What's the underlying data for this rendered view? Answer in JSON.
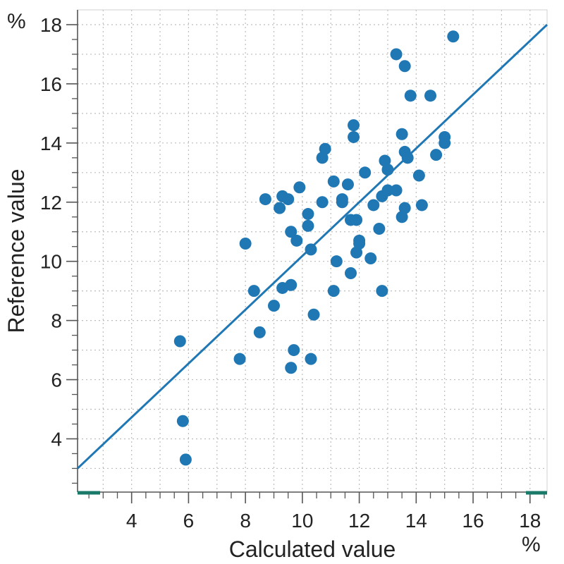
{
  "chart_data": {
    "type": "scatter",
    "xlabel": "Calculated value",
    "ylabel": "Reference value",
    "x_unit": "%",
    "y_unit": "%",
    "xlim": [
      2.1,
      18.6
    ],
    "ylim": [
      2.2,
      18.5
    ],
    "x_ticks": [
      "4",
      "6",
      "8",
      "10",
      "12",
      "14",
      "16",
      "18"
    ],
    "y_ticks": [
      "4",
      "6",
      "8",
      "10",
      "12",
      "14",
      "16",
      "18"
    ],
    "grid": true,
    "marker_color": "#1f77b4",
    "line_color": "#1f77b4",
    "axis_marker_color": "#1a7a6a",
    "points": [
      [
        5.7,
        7.3
      ],
      [
        5.8,
        4.6
      ],
      [
        5.9,
        3.3
      ],
      [
        7.8,
        6.7
      ],
      [
        8.0,
        10.6
      ],
      [
        8.3,
        9.0
      ],
      [
        8.5,
        7.6
      ],
      [
        8.7,
        12.1
      ],
      [
        9.0,
        8.5
      ],
      [
        9.2,
        11.8
      ],
      [
        9.3,
        12.2
      ],
      [
        9.3,
        9.1
      ],
      [
        9.5,
        12.1
      ],
      [
        9.6,
        9.2
      ],
      [
        9.6,
        11.0
      ],
      [
        9.6,
        6.4
      ],
      [
        9.7,
        7.0
      ],
      [
        9.8,
        10.7
      ],
      [
        9.9,
        12.5
      ],
      [
        10.2,
        11.6
      ],
      [
        10.2,
        11.2
      ],
      [
        10.3,
        10.4
      ],
      [
        10.3,
        6.7
      ],
      [
        10.4,
        8.2
      ],
      [
        10.7,
        13.5
      ],
      [
        10.7,
        12.0
      ],
      [
        10.8,
        13.8
      ],
      [
        11.1,
        12.7
      ],
      [
        11.1,
        9.0
      ],
      [
        11.2,
        10.0
      ],
      [
        11.4,
        12.1
      ],
      [
        11.4,
        12.0
      ],
      [
        11.6,
        12.6
      ],
      [
        11.7,
        11.4
      ],
      [
        11.7,
        9.6
      ],
      [
        11.8,
        14.2
      ],
      [
        11.8,
        14.6
      ],
      [
        11.9,
        11.4
      ],
      [
        11.9,
        10.3
      ],
      [
        12.0,
        10.6
      ],
      [
        12.0,
        10.7
      ],
      [
        12.2,
        13.0
      ],
      [
        12.4,
        10.1
      ],
      [
        12.5,
        11.9
      ],
      [
        12.7,
        11.1
      ],
      [
        12.8,
        12.2
      ],
      [
        12.8,
        9.0
      ],
      [
        12.9,
        13.4
      ],
      [
        13.0,
        13.1
      ],
      [
        13.0,
        12.4
      ],
      [
        13.3,
        17.0
      ],
      [
        13.3,
        12.4
      ],
      [
        13.5,
        11.5
      ],
      [
        13.5,
        14.3
      ],
      [
        13.6,
        16.6
      ],
      [
        13.6,
        13.7
      ],
      [
        13.6,
        11.8
      ],
      [
        13.7,
        13.5
      ],
      [
        13.8,
        15.6
      ],
      [
        14.1,
        12.9
      ],
      [
        14.2,
        11.9
      ],
      [
        14.5,
        15.6
      ],
      [
        14.7,
        13.6
      ],
      [
        15.0,
        14.2
      ],
      [
        15.0,
        14.0
      ],
      [
        15.3,
        17.6
      ]
    ],
    "fit_line": {
      "x": [
        2.1,
        18.6
      ],
      "y": [
        3.0,
        18.0
      ]
    }
  }
}
